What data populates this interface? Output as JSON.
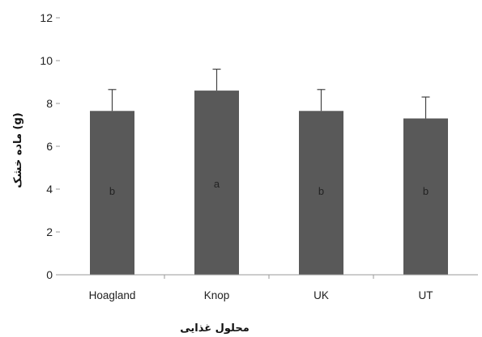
{
  "chart_data": {
    "type": "bar",
    "categories": [
      "Hoagland",
      "Knop",
      "UK",
      "UT"
    ],
    "values": [
      7.65,
      8.6,
      7.65,
      7.3
    ],
    "errors": [
      1.0,
      1.0,
      1.0,
      1.0
    ],
    "letters": [
      "b",
      "a",
      "b",
      "b"
    ],
    "xlabel": "محلول غذایی",
    "ylabel": "ماده خشک (g)",
    "ylim": [
      0,
      12
    ],
    "yticks": [
      0,
      2,
      4,
      6,
      8,
      10,
      12
    ],
    "grid": false,
    "bar_color": "#595959",
    "axis_color": "#9a9a9a"
  }
}
